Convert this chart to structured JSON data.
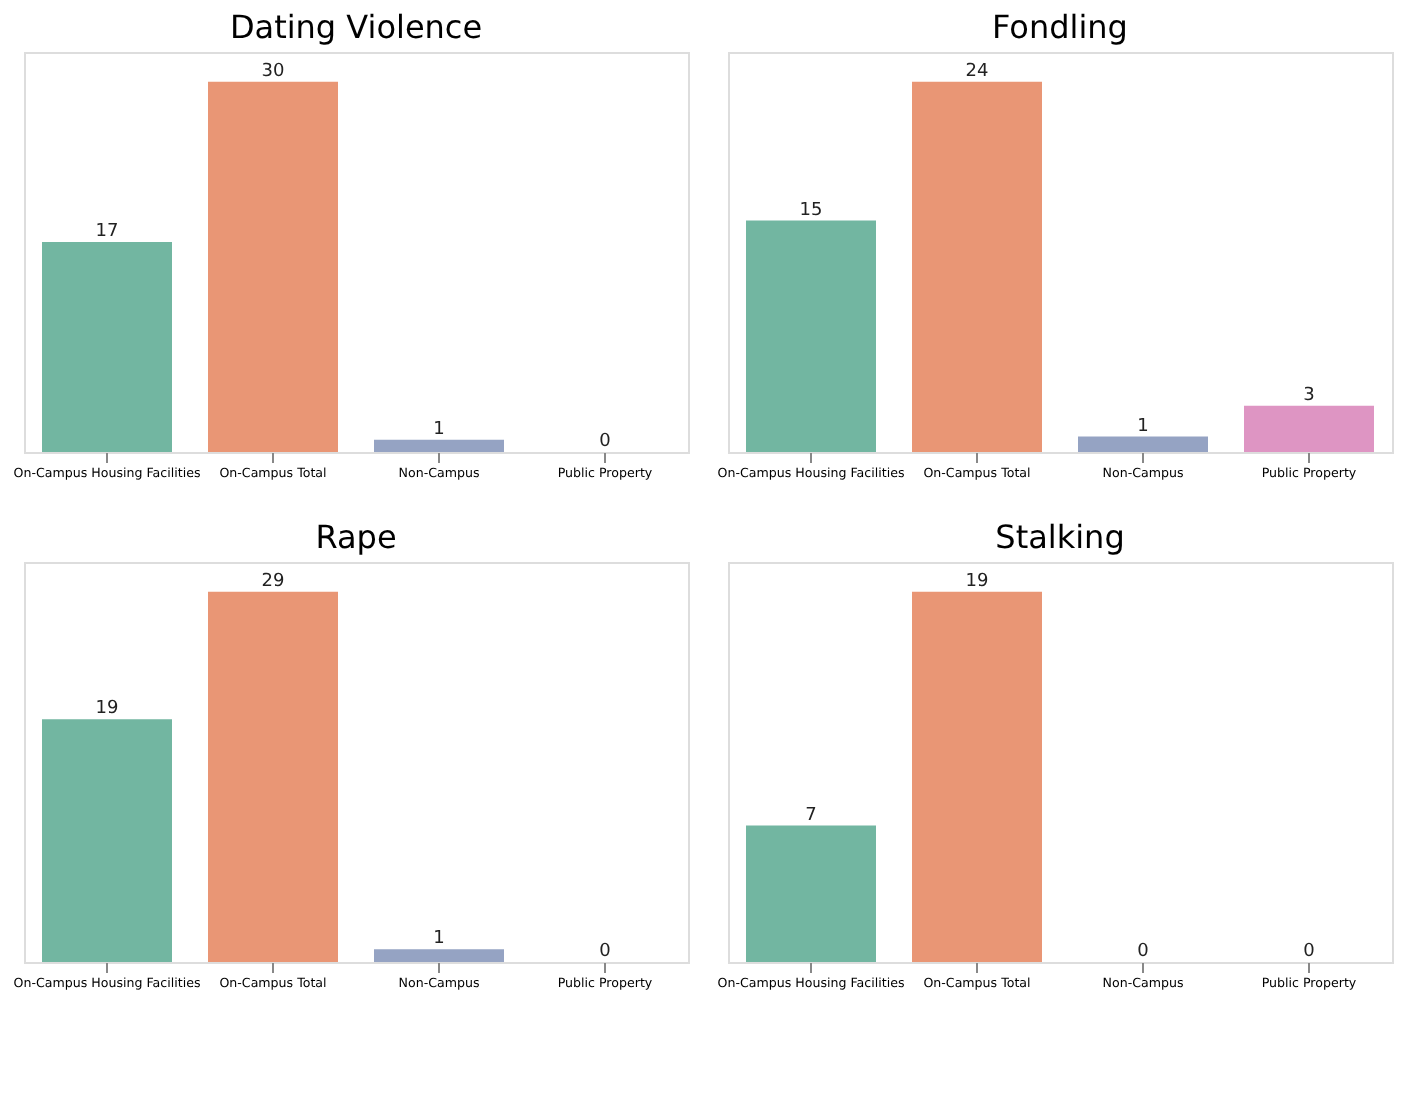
{
  "chart_data": [
    {
      "type": "bar",
      "title": "Dating Violence",
      "categories": [
        "On-Campus Housing Facilities",
        "On-Campus Total",
        "Non-Campus",
        "Public Property"
      ],
      "values": [
        17,
        30,
        1,
        0
      ],
      "colors": [
        "#72b6a1",
        "#e99675",
        "#95a3c3",
        "#de95c3"
      ],
      "data_labels": true,
      "grid": false,
      "legend": false
    },
    {
      "type": "bar",
      "title": "Fondling",
      "categories": [
        "On-Campus Housing Facilities",
        "On-Campus Total",
        "Non-Campus",
        "Public Property"
      ],
      "values": [
        15,
        24,
        1,
        3
      ],
      "colors": [
        "#72b6a1",
        "#e99675",
        "#95a3c3",
        "#de95c3"
      ],
      "data_labels": true,
      "grid": false,
      "legend": false
    },
    {
      "type": "bar",
      "title": "Rape",
      "categories": [
        "On-Campus Housing Facilities",
        "On-Campus Total",
        "Non-Campus",
        "Public Property"
      ],
      "values": [
        19,
        29,
        1,
        0
      ],
      "colors": [
        "#72b6a1",
        "#e99675",
        "#95a3c3",
        "#de95c3"
      ],
      "data_labels": true,
      "grid": false,
      "legend": false
    },
    {
      "type": "bar",
      "title": "Stalking",
      "categories": [
        "On-Campus Housing Facilities",
        "On-Campus Total",
        "Non-Campus",
        "Public Property"
      ],
      "values": [
        7,
        19,
        0,
        0
      ],
      "colors": [
        "#72b6a1",
        "#e99675",
        "#95a3c3",
        "#de95c3"
      ],
      "data_labels": true,
      "grid": false,
      "legend": false
    }
  ]
}
